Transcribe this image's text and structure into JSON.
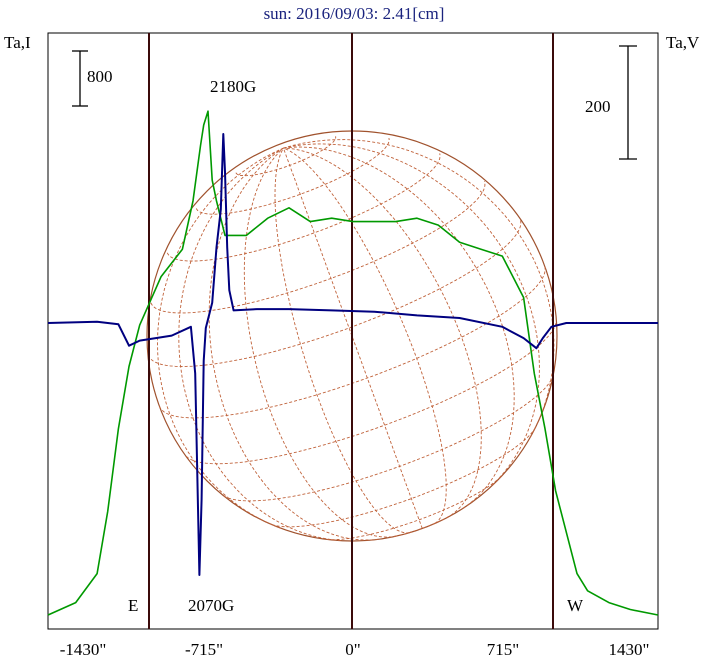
{
  "chart_data": {
    "type": "line",
    "title": "sun: 2016/09/03: 2.41[cm]",
    "ylabel_left": "Ta,I",
    "ylabel_right": "Ta,V",
    "scale_bar_left": "800",
    "scale_bar_right": "200",
    "x_ticks": [
      "-1430\"",
      "-715\"",
      "0\"",
      "715\"",
      "1430\""
    ],
    "xlim": [
      -1430,
      1430
    ],
    "limb_labels": {
      "east": "E",
      "west": "W"
    },
    "annotations": [
      "2180G",
      "2070G"
    ],
    "grid": false,
    "series": [
      {
        "color": "#009900",
        "points": [
          [
            -1430,
            0
          ],
          [
            -1300,
            180
          ],
          [
            -1200,
            600
          ],
          [
            -1150,
            1500
          ],
          [
            -1100,
            2700
          ],
          [
            -1050,
            3600
          ],
          [
            -1000,
            4200
          ],
          [
            -900,
            4900
          ],
          [
            -800,
            5300
          ],
          [
            -750,
            6000
          ],
          [
            -715,
            6800
          ],
          [
            -700,
            7100
          ],
          [
            -680,
            7300
          ],
          [
            -660,
            6300
          ],
          [
            -640,
            6000
          ],
          [
            -600,
            5500
          ],
          [
            -500,
            5500
          ],
          [
            -400,
            5750
          ],
          [
            -300,
            5900
          ],
          [
            -200,
            5700
          ],
          [
            -100,
            5750
          ],
          [
            0,
            5700
          ],
          [
            100,
            5700
          ],
          [
            200,
            5700
          ],
          [
            300,
            5750
          ],
          [
            400,
            5650
          ],
          [
            500,
            5400
          ],
          [
            600,
            5300
          ],
          [
            700,
            5200
          ],
          [
            800,
            4600
          ],
          [
            850,
            3500
          ],
          [
            900,
            2700
          ],
          [
            950,
            1800
          ],
          [
            1000,
            1200
          ],
          [
            1050,
            600
          ],
          [
            1100,
            350
          ],
          [
            1200,
            180
          ],
          [
            1300,
            80
          ],
          [
            1430,
            0
          ]
        ]
      },
      {
        "color": "#000080",
        "points": [
          [
            -1430,
            0
          ],
          [
            -1200,
            5
          ],
          [
            -1100,
            -5
          ],
          [
            -1050,
            -90
          ],
          [
            -1000,
            -70
          ],
          [
            -850,
            -50
          ],
          [
            -760,
            -15
          ],
          [
            -740,
            -200
          ],
          [
            -730,
            -600
          ],
          [
            -720,
            -1000
          ],
          [
            -710,
            -700
          ],
          [
            -700,
            -150
          ],
          [
            -690,
            -20
          ],
          [
            -660,
            80
          ],
          [
            -640,
            300
          ],
          [
            -620,
            450
          ],
          [
            -608,
            750
          ],
          [
            -600,
            600
          ],
          [
            -590,
            300
          ],
          [
            -580,
            130
          ],
          [
            -560,
            50
          ],
          [
            -450,
            55
          ],
          [
            -300,
            55
          ],
          [
            -100,
            50
          ],
          [
            100,
            45
          ],
          [
            300,
            30
          ],
          [
            500,
            20
          ],
          [
            700,
            -15
          ],
          [
            800,
            -60
          ],
          [
            860,
            -100
          ],
          [
            890,
            -60
          ],
          [
            930,
            -15
          ],
          [
            1000,
            0
          ],
          [
            1200,
            0
          ],
          [
            1430,
            0
          ]
        ]
      }
    ]
  }
}
